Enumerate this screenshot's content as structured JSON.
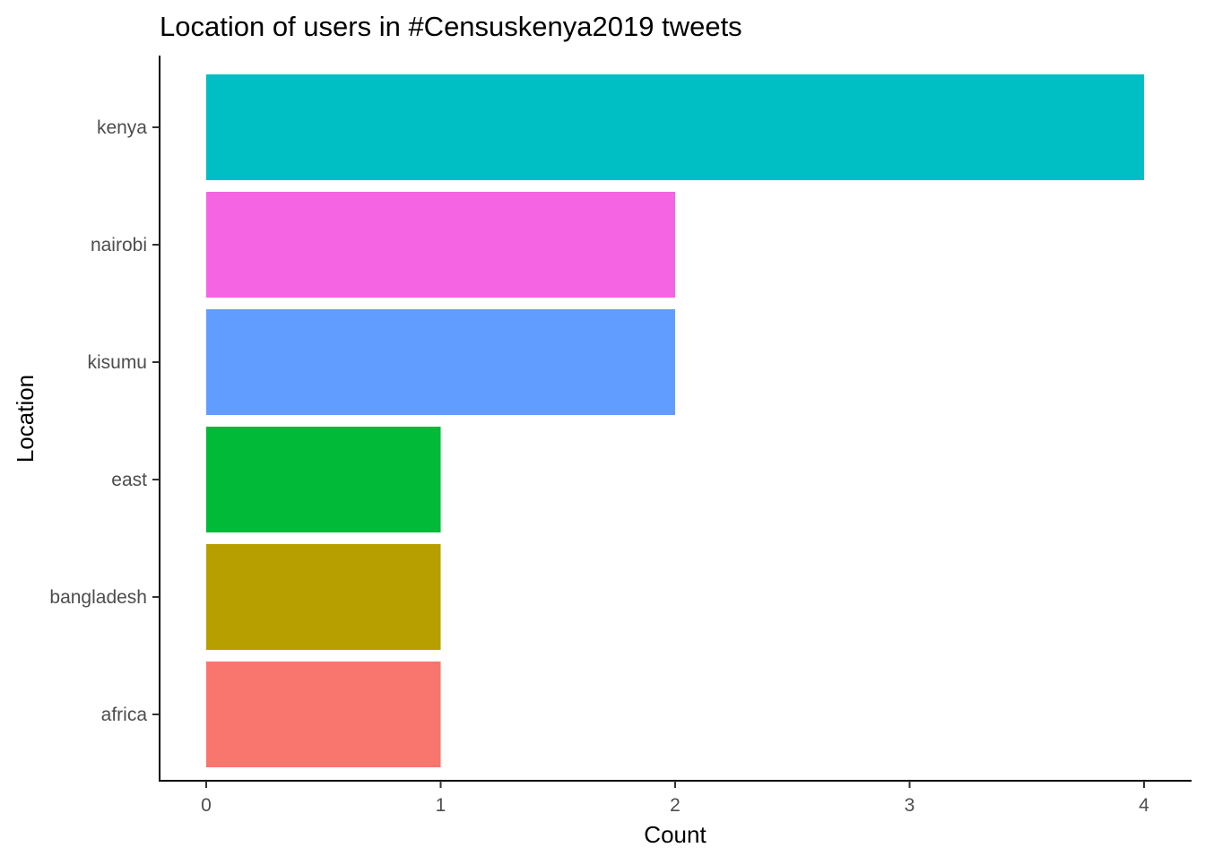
{
  "chart_data": {
    "type": "bar",
    "orientation": "horizontal",
    "title": "Location of users in #Censuskenya2019 tweets",
    "xlabel": "Count",
    "ylabel": "Location",
    "categories": [
      "africa",
      "bangladesh",
      "east",
      "kisumu",
      "nairobi",
      "kenya"
    ],
    "values": [
      1,
      1,
      1,
      2,
      2,
      4
    ],
    "colors": [
      "#F8766D",
      "#B79F00",
      "#00BA38",
      "#619CFF",
      "#F564E3",
      "#00BFC4"
    ],
    "x_ticks": [
      "0",
      "1",
      "2",
      "3",
      "4"
    ],
    "xlim": [
      0,
      4
    ],
    "grid": false,
    "legend": "none"
  }
}
